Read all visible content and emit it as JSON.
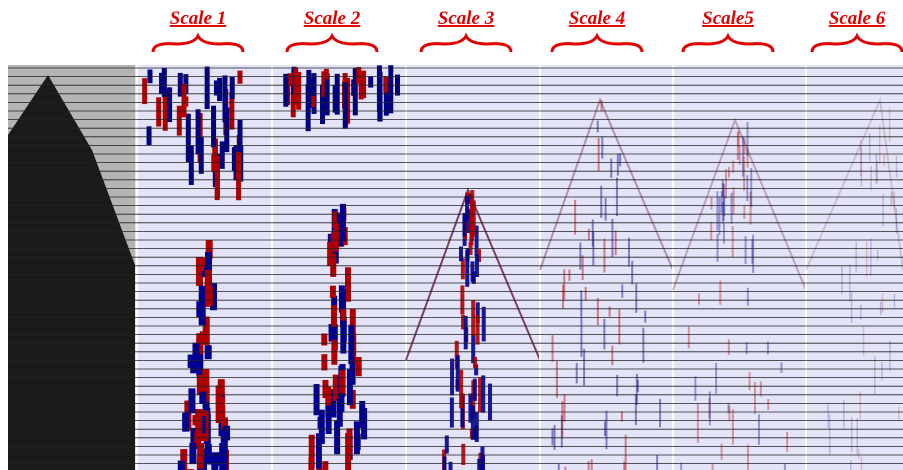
{
  "labels": [
    "Scale 1",
    "Scale 2",
    "Scale 3",
    "Scale 4",
    "Scale5",
    "Scale 6"
  ]
}
